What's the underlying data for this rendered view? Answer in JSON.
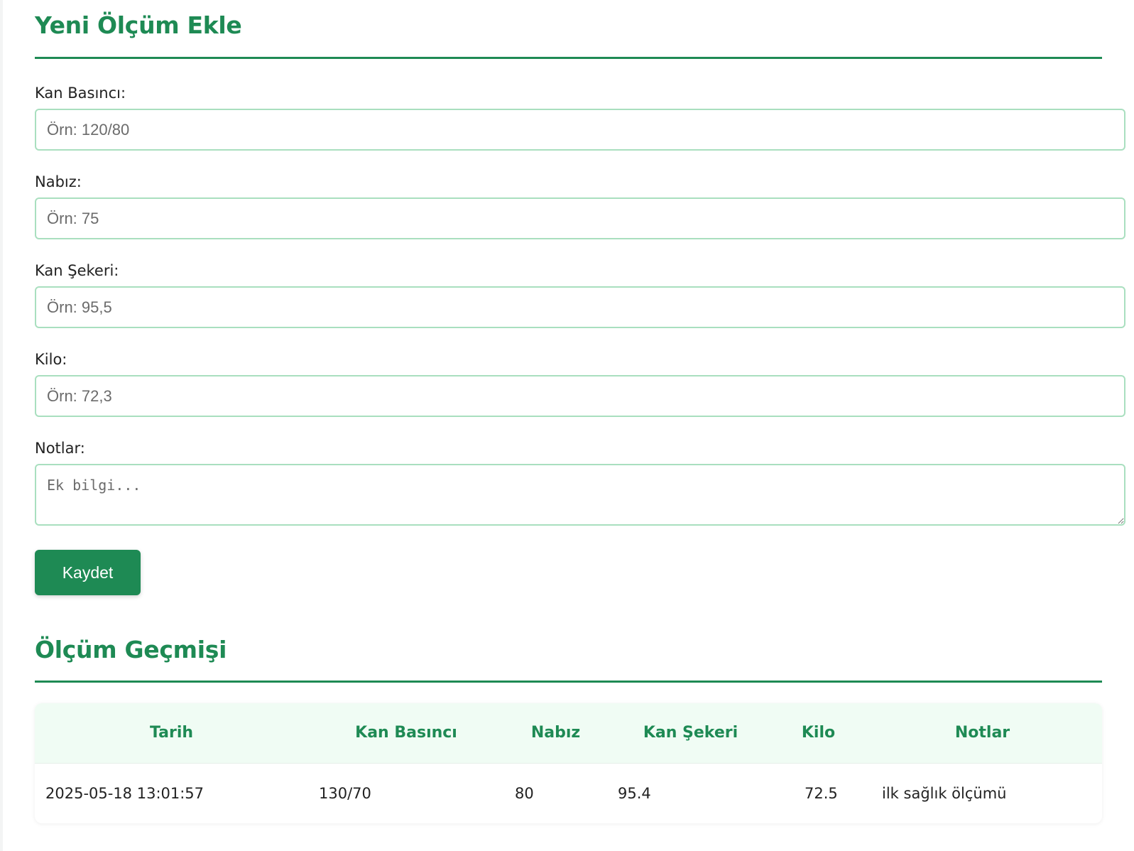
{
  "form": {
    "title": "Yeni Ölçüm Ekle",
    "fields": {
      "blood_pressure": {
        "label": "Kan Basıncı:",
        "placeholder": "Örn: 120/80",
        "value": ""
      },
      "pulse": {
        "label": "Nabız:",
        "placeholder": "Örn: 75",
        "value": ""
      },
      "blood_sugar": {
        "label": "Kan Şekeri:",
        "placeholder": "Örn: 95,5",
        "value": ""
      },
      "weight": {
        "label": "Kilo:",
        "placeholder": "Örn: 72,3",
        "value": ""
      },
      "notes": {
        "label": "Notlar:",
        "placeholder": "Ek bilgi...",
        "value": ""
      }
    },
    "save_label": "Kaydet"
  },
  "history": {
    "title": "Ölçüm Geçmişi",
    "columns": [
      "Tarih",
      "Kan Basıncı",
      "Nabız",
      "Kan Şekeri",
      "Kilo",
      "Notlar"
    ],
    "rows": [
      [
        "2025-05-18 13:01:57",
        "130/70",
        "80",
        "95.4",
        "72.5",
        "ilk sağlık ölçümü"
      ]
    ]
  },
  "colors": {
    "accent": "#1e8a54",
    "input_border": "#a9dfbf",
    "table_header_bg": "#f0fcf4"
  }
}
